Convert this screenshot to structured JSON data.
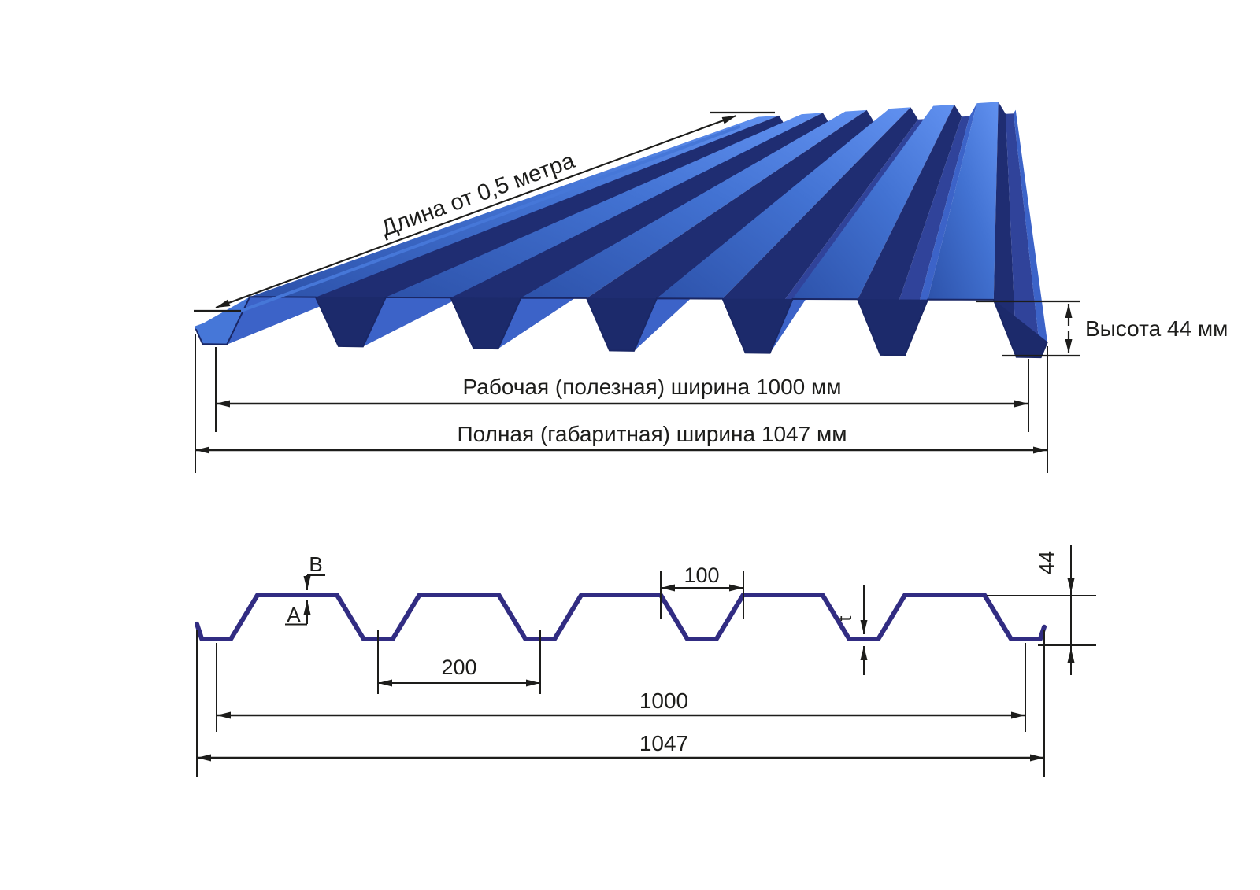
{
  "view3d": {
    "length_label": "Длина от 0,5 метра",
    "height_label": "Высота 44 мм",
    "working_width_label": "Рабочая (полезная) ширина 1000 мм",
    "overall_width_label": "Полная (габаритная) ширина 1047 мм"
  },
  "cross_section": {
    "dim_100": "100",
    "dim_200": "200",
    "dim_1000": "1000",
    "dim_1047": "1047",
    "dim_44": "44",
    "label_a": "A",
    "label_b": "B",
    "label_t": "t"
  },
  "profile": {
    "height_mm": 44,
    "working_width_mm": 1000,
    "overall_width_mm": 1047,
    "pitch_mm": 200,
    "rib_top_opening_mm": 100,
    "min_length_m": 0.5,
    "cross_section_points_mm": [
      [
        0,
        29
      ],
      [
        6,
        44
      ],
      [
        42,
        44
      ],
      [
        75,
        0
      ],
      [
        173,
        0
      ],
      [
        206,
        44
      ],
      [
        242,
        44
      ],
      [
        275,
        0
      ],
      [
        373,
        0
      ],
      [
        406,
        44
      ],
      [
        442,
        44
      ],
      [
        475,
        0
      ],
      [
        573,
        0
      ],
      [
        606,
        44
      ],
      [
        642,
        44
      ],
      [
        675,
        0
      ],
      [
        773,
        0
      ],
      [
        806,
        44
      ],
      [
        842,
        44
      ],
      [
        875,
        0
      ],
      [
        973,
        0
      ],
      [
        1006,
        44
      ],
      [
        1042,
        44
      ],
      [
        1047,
        32
      ]
    ],
    "view3d_points_mm": [
      [
        0,
        29
      ],
      [
        9,
        44
      ],
      [
        39,
        44
      ],
      [
        67,
        0
      ],
      [
        148,
        0
      ],
      [
        176,
        44
      ],
      [
        206,
        44
      ],
      [
        234,
        0
      ],
      [
        314,
        0
      ],
      [
        342,
        44
      ],
      [
        372,
        44
      ],
      [
        400,
        0
      ],
      [
        481,
        0
      ],
      [
        509,
        44
      ],
      [
        539,
        44
      ],
      [
        567,
        0
      ],
      [
        648,
        0
      ],
      [
        676,
        44
      ],
      [
        706,
        44
      ],
      [
        734,
        0
      ],
      [
        814,
        0
      ],
      [
        842,
        44
      ],
      [
        872,
        44
      ],
      [
        900,
        0
      ],
      [
        981,
        0
      ],
      [
        1009,
        44
      ],
      [
        1039,
        44
      ],
      [
        1047,
        32
      ]
    ]
  },
  "colors": {
    "profile_line": "#312c82",
    "dim_line": "#1d1d1b",
    "top_grad_start": "#2d52aa",
    "top_grad_mid": "#4272d2",
    "top_grad_end": "#6191f0",
    "slope_left": "#3c63c8",
    "slope_right": "#1f2d72",
    "valley": "#30439a",
    "cavity": "#1c2a6b",
    "cavity_lit": "#4677d8",
    "front_edge": "#1a2765"
  }
}
